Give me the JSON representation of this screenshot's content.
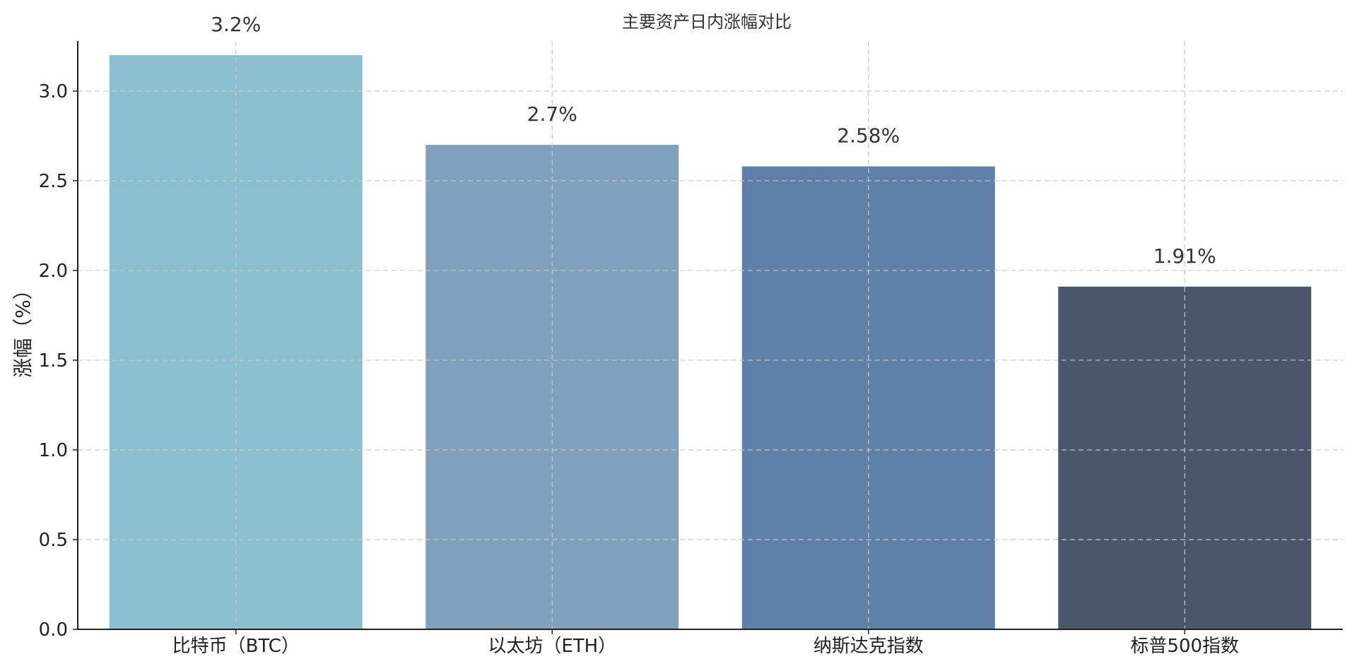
{
  "chart_data": {
    "type": "bar",
    "title": "主要资产日内涨幅对比",
    "xlabel": "",
    "ylabel": "涨幅（%）",
    "categories": [
      "比特币（BTC）",
      "以太坊（ETH）",
      "纳斯达克指数",
      "标普500指数"
    ],
    "values": [
      3.2,
      2.7,
      2.58,
      1.91
    ],
    "value_labels": [
      "3.2%",
      "2.7%",
      "2.58%",
      "1.91%"
    ],
    "colors": [
      "#89bfcf",
      "#80a0be",
      "#5e80a9",
      "#4a566b"
    ],
    "ylim": [
      0,
      3.35
    ],
    "yticks": [
      0.0,
      0.5,
      1.0,
      1.5,
      2.0,
      2.5,
      3.0
    ],
    "ytick_labels": [
      "0.0",
      "0.5",
      "1.0",
      "1.5",
      "2.0",
      "2.5",
      "3.0"
    ],
    "grid": true,
    "legend": "none"
  }
}
